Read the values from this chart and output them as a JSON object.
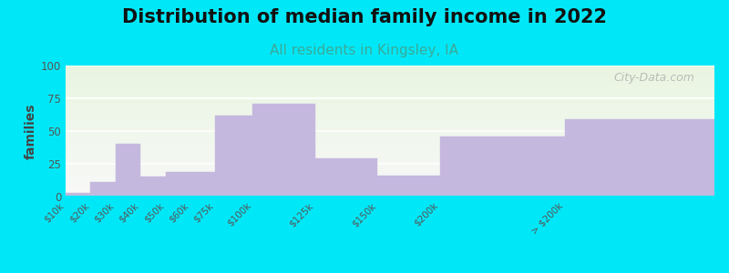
{
  "title": "Distribution of median family income in 2022",
  "subtitle": "All residents in Kingsley, IA",
  "ylabel": "families",
  "categories": [
    "$10k",
    "$20k",
    "$30k",
    "$40k",
    "$50k",
    "$60k",
    "$75k",
    "$100k",
    "$125k",
    "$150k",
    "$200k",
    "> $200k"
  ],
  "values": [
    3,
    11,
    40,
    15,
    19,
    19,
    62,
    71,
    29,
    16,
    46,
    59
  ],
  "bin_edges": [
    0,
    10,
    20,
    30,
    40,
    50,
    60,
    75,
    100,
    125,
    150,
    200,
    260
  ],
  "bar_color": "#c5b8de",
  "background_outer": "#00e8f8",
  "background_plot_top": "#e8f5e0",
  "background_plot_bottom": "#f8f8f8",
  "title_fontsize": 15,
  "subtitle_fontsize": 11,
  "subtitle_color": "#3aaa99",
  "ylabel_fontsize": 10,
  "yticks": [
    0,
    25,
    50,
    75,
    100
  ],
  "ylim": [
    0,
    100
  ],
  "watermark": "City-Data.com",
  "figsize": [
    8.0,
    3.0
  ],
  "dpi": 100
}
